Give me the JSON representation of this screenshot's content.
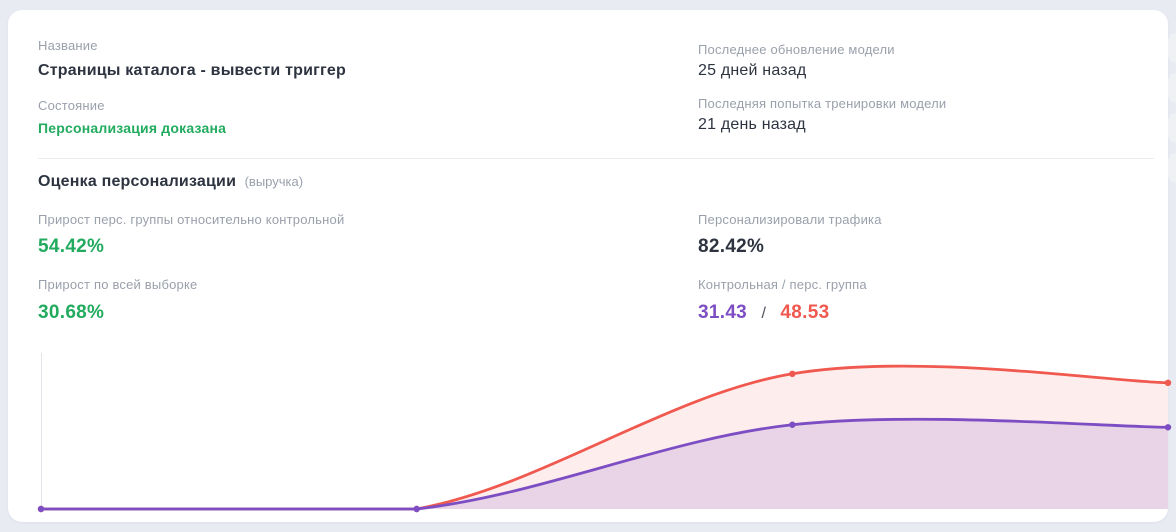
{
  "card": {
    "info": {
      "name_label": "Название",
      "name_value": "Страницы каталога - вывести триггер",
      "state_label": "Состояние",
      "state_value": "Персонализация доказана",
      "updated_label": "Последнее обновление модели",
      "updated_value": "25 дней назад",
      "training_label": "Последняя попытка тренировки модели",
      "training_value": "21 день назад"
    },
    "metrics": {
      "section_title": "Оценка персонализации",
      "section_subtitle": "(выручка)",
      "uplift_vs_control_label": "Прирост перс. группы относительно контрольной",
      "uplift_vs_control_value": "54.42%",
      "uplift_overall_label": "Прирост по всей выборке",
      "uplift_overall_value": "30.68%",
      "personalized_traffic_label": "Персонализировали трафика",
      "personalized_traffic_value": "82.42%",
      "groups_label": "Контрольная / перс. группа",
      "control_value": "31.43",
      "groups_separator": "/",
      "personalized_value": "48.53"
    },
    "colors": {
      "positive": "#22ab5f",
      "control": "#7d4ec3",
      "personalized": "#f0594f",
      "text_dark": "#2d3440",
      "text_muted": "#9aa0ab"
    }
  },
  "chart_data": {
    "type": "area",
    "x": [
      0,
      1,
      2,
      3
    ],
    "x_tick_labels": [],
    "ylim": [
      0,
      60
    ],
    "grid": false,
    "legend": "none",
    "axis_color": "#e3e4e9",
    "series": [
      {
        "name": "Перс. группа",
        "color": "#f0594f",
        "fill": "rgba(240,89,79,0.10)",
        "values": [
          0,
          0,
          52.0,
          48.53
        ]
      },
      {
        "name": "Контрольная группа",
        "color": "#7d4ec3",
        "fill": "rgba(125,78,195,0.16)",
        "values": [
          0,
          0,
          32.4,
          31.43
        ]
      }
    ]
  }
}
